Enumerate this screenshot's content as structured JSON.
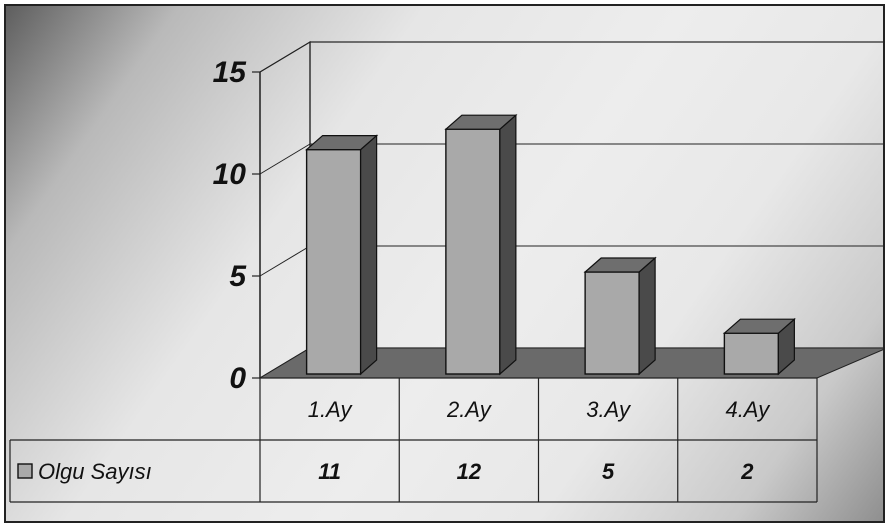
{
  "chart_data": {
    "type": "bar",
    "title": "",
    "xlabel": "",
    "ylabel": "",
    "categories": [
      "1.Ay",
      "2.Ay",
      "3.Ay",
      "4.Ay"
    ],
    "series": [
      {
        "name": "Olgu Sayısı",
        "values": [
          11,
          12,
          5,
          2
        ]
      }
    ],
    "ylim": [
      0,
      15
    ],
    "yticks": [
      "0",
      "5",
      "10",
      "15"
    ],
    "grid": true,
    "legend": "data-table-left",
    "colors": {
      "bar_front": "#a9a9a9",
      "bar_side": "#4a4a4a",
      "bar_top": "#6e6e6e",
      "floor": "#6a6a6a"
    }
  }
}
